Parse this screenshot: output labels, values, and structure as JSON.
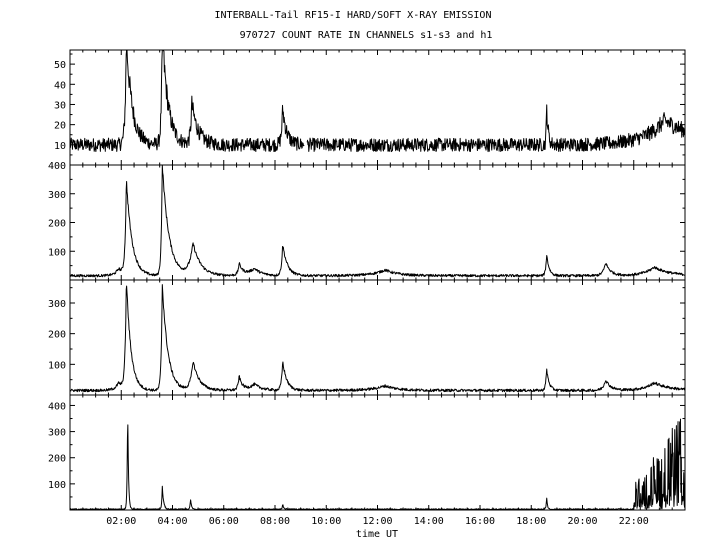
{
  "title_line1": "INTERBALL-Tail RF15-I HARD/SOFT X-RAY EMISSION",
  "title_line2": "970727  COUNT RATE IN CHANNELS s1-s3 and h1",
  "x_axis_label": "time UT",
  "chart_data": [
    {
      "type": "line",
      "series": [
        {
          "name": "",
          "values": []
        }
      ],
      "x_range_hours": [
        0,
        24
      ],
      "ylim": [
        0,
        57
      ],
      "yticks": [
        10,
        20,
        30,
        40,
        50
      ],
      "baseline": 10,
      "noise": 2.6,
      "gap_hours": [
        [
          9.15,
          9.25
        ]
      ],
      "events": [
        {
          "t": 2.2,
          "peak": 52,
          "decay": 0.23,
          "rise": 0.05
        },
        {
          "t": 3.6,
          "peak": 55,
          "decay": 0.23,
          "rise": 0.04
        },
        {
          "t": 4.75,
          "peak": 20,
          "decay": 0.25,
          "rise": 0.05
        },
        {
          "t": 8.3,
          "peak": 18,
          "decay": 0.16,
          "rise": 0.05
        },
        {
          "t": 18.6,
          "peak": 20,
          "decay": 0.06,
          "rise": 0.02
        },
        {
          "t": 23.2,
          "peak": 12,
          "decay": 1.5,
          "rise": 0.8
        }
      ]
    },
    {
      "type": "line",
      "series": [
        {
          "name": "",
          "values": []
        }
      ],
      "x_range_hours": [
        0,
        24
      ],
      "ylim": [
        0,
        400
      ],
      "yticks": [
        100,
        200,
        300,
        400
      ],
      "baseline": 15,
      "noise": 4,
      "events": [
        {
          "t": 1.9,
          "peak": 25,
          "decay": 0.2,
          "rise": 0.15
        },
        {
          "t": 2.2,
          "peak": 330,
          "decay": 0.22,
          "rise": 0.05
        },
        {
          "t": 3.6,
          "peak": 390,
          "decay": 0.26,
          "rise": 0.04
        },
        {
          "t": 4.8,
          "peak": 110,
          "decay": 0.3,
          "rise": 0.15
        },
        {
          "t": 6.6,
          "peak": 40,
          "decay": 0.15,
          "rise": 0.05
        },
        {
          "t": 7.2,
          "peak": 25,
          "decay": 0.3,
          "rise": 0.3
        },
        {
          "t": 8.3,
          "peak": 110,
          "decay": 0.18,
          "rise": 0.05
        },
        {
          "t": 12.3,
          "peak": 20,
          "decay": 0.5,
          "rise": 0.5
        },
        {
          "t": 18.6,
          "peak": 75,
          "decay": 0.1,
          "rise": 0.04
        },
        {
          "t": 20.9,
          "peak": 45,
          "decay": 0.2,
          "rise": 0.1
        },
        {
          "t": 22.8,
          "peak": 30,
          "decay": 0.6,
          "rise": 0.4
        }
      ]
    },
    {
      "type": "line",
      "series": [
        {
          "name": "",
          "values": []
        }
      ],
      "x_range_hours": [
        0,
        24
      ],
      "ylim": [
        0,
        375
      ],
      "yticks": [
        100,
        200,
        300
      ],
      "baseline": 15,
      "noise": 4,
      "events": [
        {
          "t": 1.9,
          "peak": 25,
          "decay": 0.2,
          "rise": 0.15
        },
        {
          "t": 2.2,
          "peak": 360,
          "decay": 0.18,
          "rise": 0.05
        },
        {
          "t": 3.6,
          "peak": 350,
          "decay": 0.22,
          "rise": 0.04
        },
        {
          "t": 4.8,
          "peak": 95,
          "decay": 0.25,
          "rise": 0.1
        },
        {
          "t": 6.6,
          "peak": 45,
          "decay": 0.12,
          "rise": 0.05
        },
        {
          "t": 7.2,
          "peak": 20,
          "decay": 0.3,
          "rise": 0.3
        },
        {
          "t": 8.3,
          "peak": 95,
          "decay": 0.16,
          "rise": 0.05
        },
        {
          "t": 12.3,
          "peak": 15,
          "decay": 0.5,
          "rise": 0.5
        },
        {
          "t": 18.6,
          "peak": 70,
          "decay": 0.1,
          "rise": 0.04
        },
        {
          "t": 20.9,
          "peak": 35,
          "decay": 0.2,
          "rise": 0.1
        },
        {
          "t": 22.8,
          "peak": 25,
          "decay": 0.6,
          "rise": 0.4
        }
      ]
    },
    {
      "type": "line",
      "series": [
        {
          "name": "",
          "values": []
        }
      ],
      "x_range_hours": [
        0,
        24
      ],
      "ylim": [
        0,
        440
      ],
      "yticks": [
        100,
        200,
        300,
        400
      ],
      "xticks": [
        "02:00",
        "04:00",
        "06:00",
        "08:00",
        "10:00",
        "12:00",
        "14:00",
        "16:00",
        "18:00",
        "20:00",
        "22:00"
      ],
      "baseline": 3,
      "noise": 2,
      "events": [
        {
          "t": 2.25,
          "peak": 420,
          "decay": 0.03,
          "rise": 0.02
        },
        {
          "t": 3.6,
          "peak": 90,
          "decay": 0.05,
          "rise": 0.02
        },
        {
          "t": 4.7,
          "peak": 40,
          "decay": 0.04,
          "rise": 0.02
        },
        {
          "t": 8.3,
          "peak": 20,
          "decay": 0.04,
          "rise": 0.02
        },
        {
          "t": 18.6,
          "peak": 50,
          "decay": 0.03,
          "rise": 0.02
        }
      ],
      "burst": {
        "start": 22.0,
        "end": 24.0,
        "max": 380
      }
    }
  ]
}
